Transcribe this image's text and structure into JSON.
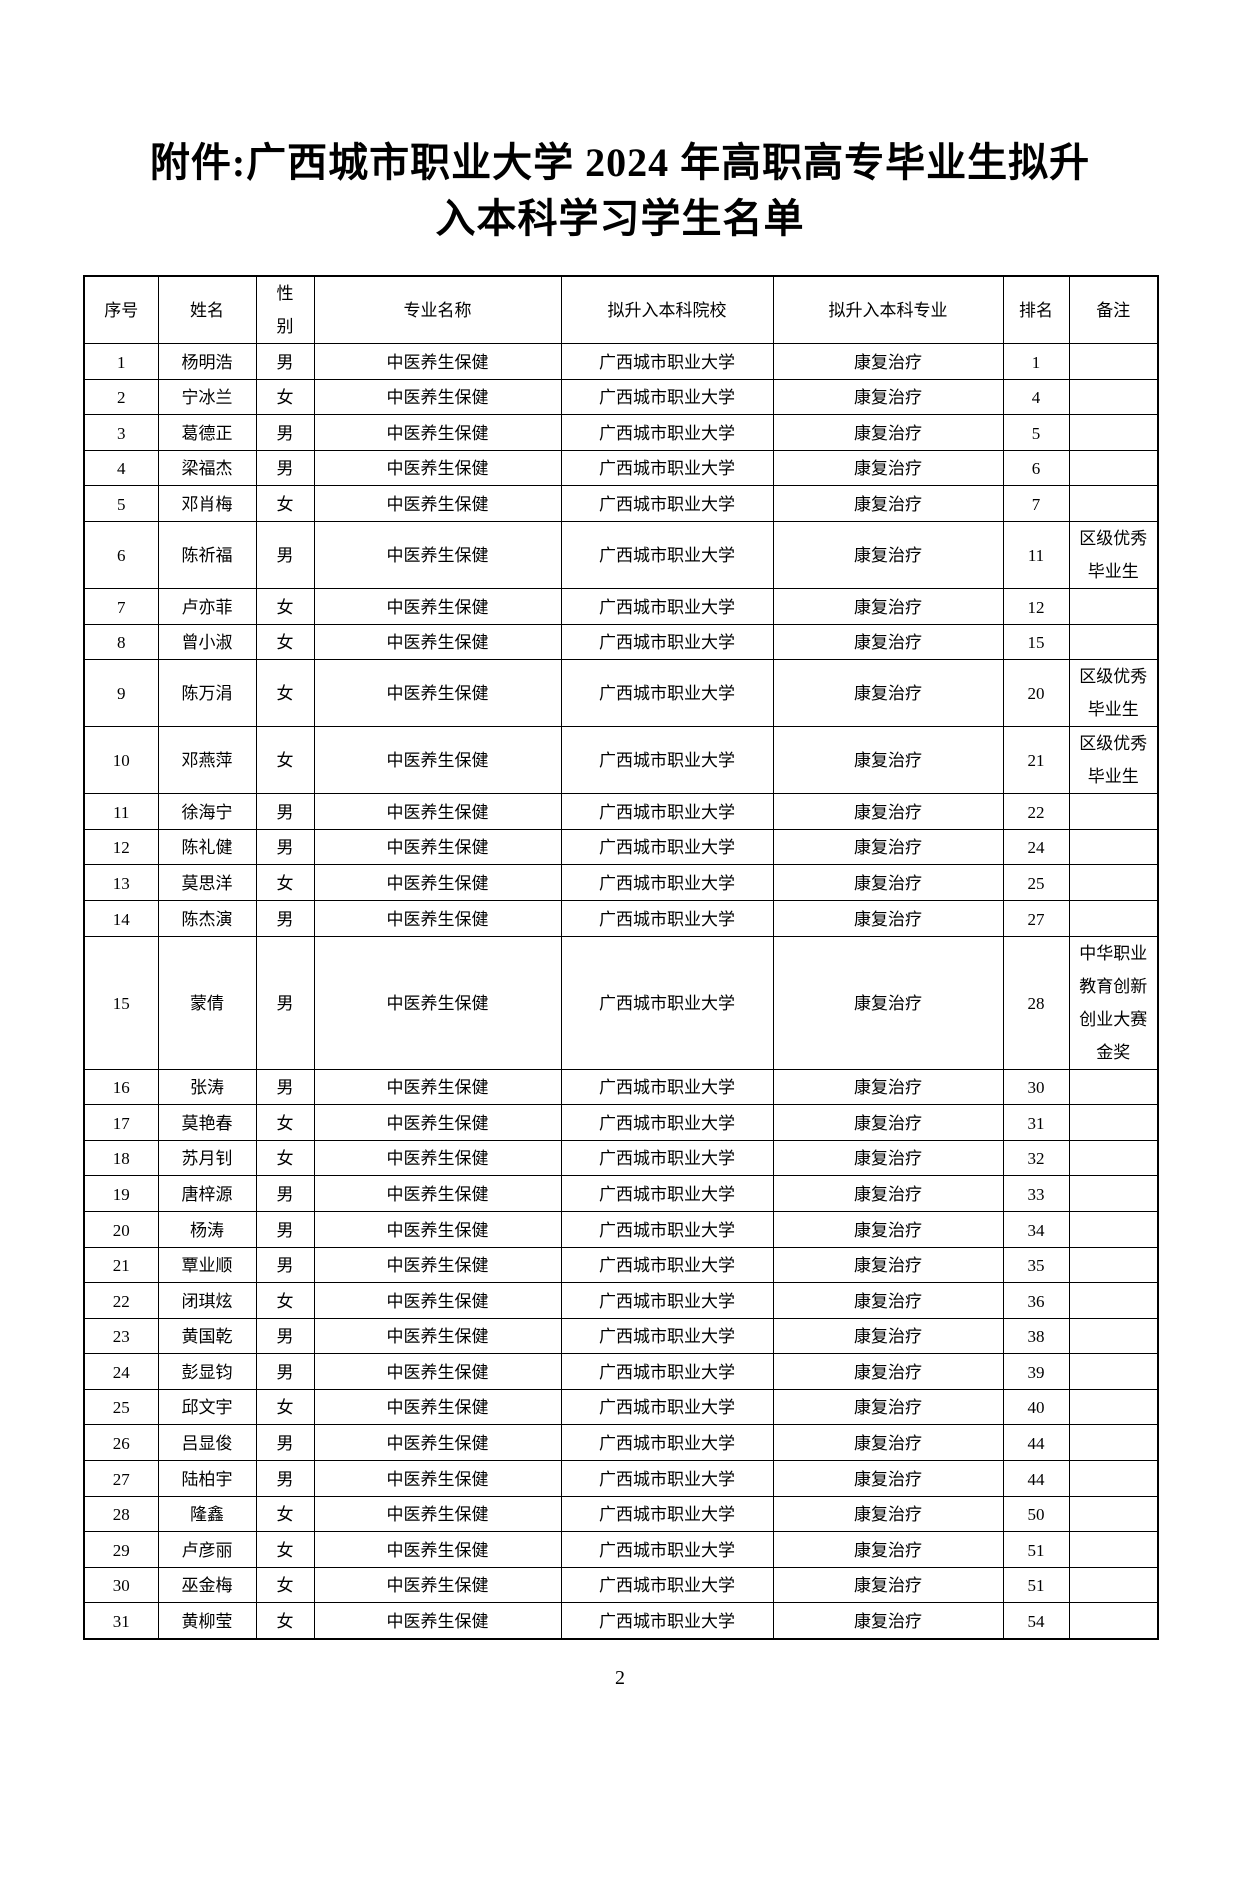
{
  "doc": {
    "title_lines": [
      "附件:广西城市职业大学 2024 年高职高专毕业生拟升",
      "入本科学习学生名单"
    ],
    "page_number": "2"
  },
  "table": {
    "headers": [
      "序号",
      "姓名",
      "性别",
      "专业名称",
      "拟升入本科院校",
      "拟升入本科专业",
      "排名",
      "备注"
    ],
    "rows": [
      {
        "no": "1",
        "name": "杨明浩",
        "gender": "男",
        "major": "中医养生保健",
        "college": "广西城市职业大学",
        "target_major": "康复治疗",
        "rank": "1",
        "remark": ""
      },
      {
        "no": "2",
        "name": "宁冰兰",
        "gender": "女",
        "major": "中医养生保健",
        "college": "广西城市职业大学",
        "target_major": "康复治疗",
        "rank": "4",
        "remark": ""
      },
      {
        "no": "3",
        "name": "葛德正",
        "gender": "男",
        "major": "中医养生保健",
        "college": "广西城市职业大学",
        "target_major": "康复治疗",
        "rank": "5",
        "remark": ""
      },
      {
        "no": "4",
        "name": "梁福杰",
        "gender": "男",
        "major": "中医养生保健",
        "college": "广西城市职业大学",
        "target_major": "康复治疗",
        "rank": "6",
        "remark": ""
      },
      {
        "no": "5",
        "name": "邓肖梅",
        "gender": "女",
        "major": "中医养生保健",
        "college": "广西城市职业大学",
        "target_major": "康复治疗",
        "rank": "7",
        "remark": ""
      },
      {
        "no": "6",
        "name": "陈祈福",
        "gender": "男",
        "major": "中医养生保健",
        "college": "广西城市职业大学",
        "target_major": "康复治疗",
        "rank": "11",
        "remark": "区级优秀毕业生"
      },
      {
        "no": "7",
        "name": "卢亦菲",
        "gender": "女",
        "major": "中医养生保健",
        "college": "广西城市职业大学",
        "target_major": "康复治疗",
        "rank": "12",
        "remark": ""
      },
      {
        "no": "8",
        "name": "曾小淑",
        "gender": "女",
        "major": "中医养生保健",
        "college": "广西城市职业大学",
        "target_major": "康复治疗",
        "rank": "15",
        "remark": ""
      },
      {
        "no": "9",
        "name": "陈万涓",
        "gender": "女",
        "major": "中医养生保健",
        "college": "广西城市职业大学",
        "target_major": "康复治疗",
        "rank": "20",
        "remark": "区级优秀毕业生"
      },
      {
        "no": "10",
        "name": "邓燕萍",
        "gender": "女",
        "major": "中医养生保健",
        "college": "广西城市职业大学",
        "target_major": "康复治疗",
        "rank": "21",
        "remark": "区级优秀毕业生"
      },
      {
        "no": "11",
        "name": "徐海宁",
        "gender": "男",
        "major": "中医养生保健",
        "college": "广西城市职业大学",
        "target_major": "康复治疗",
        "rank": "22",
        "remark": ""
      },
      {
        "no": "12",
        "name": "陈礼健",
        "gender": "男",
        "major": "中医养生保健",
        "college": "广西城市职业大学",
        "target_major": "康复治疗",
        "rank": "24",
        "remark": ""
      },
      {
        "no": "13",
        "name": "莫思洋",
        "gender": "女",
        "major": "中医养生保健",
        "college": "广西城市职业大学",
        "target_major": "康复治疗",
        "rank": "25",
        "remark": ""
      },
      {
        "no": "14",
        "name": "陈杰演",
        "gender": "男",
        "major": "中医养生保健",
        "college": "广西城市职业大学",
        "target_major": "康复治疗",
        "rank": "27",
        "remark": ""
      },
      {
        "no": "15",
        "name": "蒙倩",
        "gender": "男",
        "major": "中医养生保健",
        "college": "广西城市职业大学",
        "target_major": "康复治疗",
        "rank": "28",
        "remark": "中华职业教育创新创业大赛金奖"
      },
      {
        "no": "16",
        "name": "张涛",
        "gender": "男",
        "major": "中医养生保健",
        "college": "广西城市职业大学",
        "target_major": "康复治疗",
        "rank": "30",
        "remark": ""
      },
      {
        "no": "17",
        "name": "莫艳春",
        "gender": "女",
        "major": "中医养生保健",
        "college": "广西城市职业大学",
        "target_major": "康复治疗",
        "rank": "31",
        "remark": ""
      },
      {
        "no": "18",
        "name": "苏月钊",
        "gender": "女",
        "major": "中医养生保健",
        "college": "广西城市职业大学",
        "target_major": "康复治疗",
        "rank": "32",
        "remark": ""
      },
      {
        "no": "19",
        "name": "唐梓源",
        "gender": "男",
        "major": "中医养生保健",
        "college": "广西城市职业大学",
        "target_major": "康复治疗",
        "rank": "33",
        "remark": ""
      },
      {
        "no": "20",
        "name": "杨涛",
        "gender": "男",
        "major": "中医养生保健",
        "college": "广西城市职业大学",
        "target_major": "康复治疗",
        "rank": "34",
        "remark": ""
      },
      {
        "no": "21",
        "name": "覃业顺",
        "gender": "男",
        "major": "中医养生保健",
        "college": "广西城市职业大学",
        "target_major": "康复治疗",
        "rank": "35",
        "remark": ""
      },
      {
        "no": "22",
        "name": "闭琪炫",
        "gender": "女",
        "major": "中医养生保健",
        "college": "广西城市职业大学",
        "target_major": "康复治疗",
        "rank": "36",
        "remark": ""
      },
      {
        "no": "23",
        "name": "黄国乾",
        "gender": "男",
        "major": "中医养生保健",
        "college": "广西城市职业大学",
        "target_major": "康复治疗",
        "rank": "38",
        "remark": ""
      },
      {
        "no": "24",
        "name": "彭显钧",
        "gender": "男",
        "major": "中医养生保健",
        "college": "广西城市职业大学",
        "target_major": "康复治疗",
        "rank": "39",
        "remark": ""
      },
      {
        "no": "25",
        "name": "邱文宇",
        "gender": "女",
        "major": "中医养生保健",
        "college": "广西城市职业大学",
        "target_major": "康复治疗",
        "rank": "40",
        "remark": ""
      },
      {
        "no": "26",
        "name": "吕显俊",
        "gender": "男",
        "major": "中医养生保健",
        "college": "广西城市职业大学",
        "target_major": "康复治疗",
        "rank": "44",
        "remark": ""
      },
      {
        "no": "27",
        "name": "陆柏宇",
        "gender": "男",
        "major": "中医养生保健",
        "college": "广西城市职业大学",
        "target_major": "康复治疗",
        "rank": "44",
        "remark": ""
      },
      {
        "no": "28",
        "name": "隆鑫",
        "gender": "女",
        "major": "中医养生保健",
        "college": "广西城市职业大学",
        "target_major": "康复治疗",
        "rank": "50",
        "remark": ""
      },
      {
        "no": "29",
        "name": "卢彦丽",
        "gender": "女",
        "major": "中医养生保健",
        "college": "广西城市职业大学",
        "target_major": "康复治疗",
        "rank": "51",
        "remark": ""
      },
      {
        "no": "30",
        "name": "巫金梅",
        "gender": "女",
        "major": "中医养生保健",
        "college": "广西城市职业大学",
        "target_major": "康复治疗",
        "rank": "51",
        "remark": ""
      },
      {
        "no": "31",
        "name": "黄柳莹",
        "gender": "女",
        "major": "中医养生保健",
        "college": "广西城市职业大学",
        "target_major": "康复治疗",
        "rank": "54",
        "remark": ""
      }
    ]
  }
}
